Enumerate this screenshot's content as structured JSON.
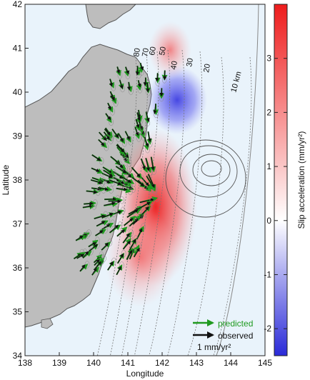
{
  "map": {
    "xlabel": "Longitude",
    "ylabel": "Latitude",
    "x_ticks": [
      "138",
      "139",
      "140",
      "141",
      "142",
      "143",
      "144",
      "145"
    ],
    "y_ticks": [
      "42",
      "41",
      "40",
      "39",
      "38",
      "37",
      "36",
      "35",
      "34"
    ],
    "xlim": [
      138,
      145
    ],
    "ylim": [
      34,
      42
    ],
    "depth_contour_labels": [
      "80",
      "70",
      "60",
      "50",
      "40",
      "30",
      "20",
      "10 km"
    ],
    "legend": {
      "predicted": "predicted",
      "observed": "observed",
      "scale": "1 mm/yr²"
    },
    "colors": {
      "ocean": "#e9f3fb",
      "land": "#bdbdbd",
      "predicted": "#1f9a1f",
      "observed": "#111111",
      "positive": "#ee1c1c",
      "negative": "#2a2ad8"
    }
  },
  "colorbar": {
    "label": "Slip acceleration (mm/yr²)",
    "ticks": [
      "3",
      "2",
      "1",
      "0",
      "-1",
      "-2"
    ],
    "range": [
      -2.5,
      4.0
    ]
  },
  "chart_data": {
    "type": "heatmap",
    "x_axis": "Longitude",
    "y_axis": "Latitude",
    "x_range": [
      138,
      145
    ],
    "y_range": [
      34,
      42
    ],
    "color_range": [
      -2.5,
      4.0
    ],
    "anomalies": [
      {
        "lon": 141.8,
        "lat": 37.5,
        "value": 3.9
      },
      {
        "lon": 141.3,
        "lat": 36.7,
        "value": 2.5
      },
      {
        "lon": 142.3,
        "lat": 40.0,
        "value": -2.0
      }
    ]
  }
}
